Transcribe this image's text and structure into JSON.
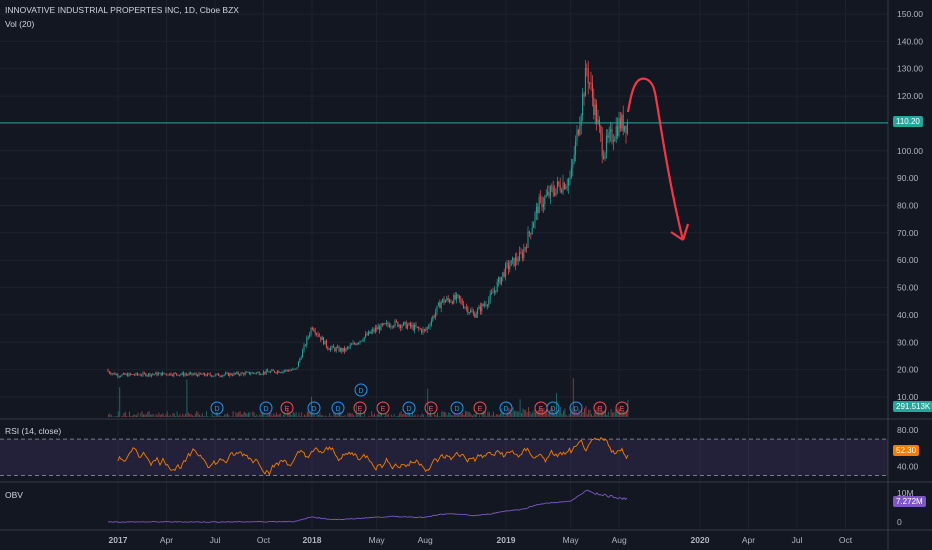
{
  "header": {
    "symbol_title": "INNOVATIVE INDUSTRIAL PROPERTES INC, 1D, Cboe BZX",
    "volume_label": "Vol (20)"
  },
  "panes": {
    "rsi_label": "RSI (14, close)",
    "obv_label": "OBV"
  },
  "badges": {
    "last_price": "110.20",
    "volume": "291.513K",
    "rsi": "52.30",
    "obv": "7.272M"
  },
  "colors": {
    "background": "#131722",
    "up": "#26a69a",
    "down": "#ef5350",
    "price_line": "#26a69a",
    "rsi_line": "#f57c00",
    "rsi_band": "#7e57c2",
    "obv_line": "#7e57c2",
    "drawing": "#f23645"
  },
  "chart_data": [
    {
      "type": "line",
      "title": "INNOVATIVE INDUSTRIAL PROPERTES INC, 1D, Cboe BZX",
      "x_ticks": [
        "2017",
        "Apr",
        "Jul",
        "Oct",
        "2018",
        "May",
        "Aug",
        "2019",
        "May",
        "Aug",
        "2020",
        "Apr",
        "Jul",
        "Oct"
      ],
      "y_ticks": [
        "150.00",
        "140.00",
        "130.00",
        "120.00",
        "110.00",
        "100.00",
        "90.00",
        "80.00",
        "70.00",
        "60.00",
        "50.00",
        "40.00",
        "30.00",
        "20.00",
        "10.00"
      ],
      "ylim": [
        10,
        150
      ],
      "series": [
        {
          "x": [
            "2016-12",
            "2017-01",
            "2017-04",
            "2017-07",
            "2017-10",
            "2017-12",
            "2018-01",
            "2018-02",
            "2018-03",
            "2018-04",
            "2018-05",
            "2018-06",
            "2018-07",
            "2018-08",
            "2018-09",
            "2018-10",
            "2018-11",
            "2018-12",
            "2019-01",
            "2019-02",
            "2019-03",
            "2019-04",
            "2019-05",
            "2019-06",
            "2019-07",
            "2019-08"
          ],
          "values": [
            20,
            18,
            18.5,
            18,
            19,
            20,
            36,
            28,
            27,
            31,
            35,
            37,
            36,
            34,
            45,
            46,
            40,
            46,
            57,
            62,
            80,
            86,
            90,
            130,
            100,
            110
          ]
        }
      ],
      "last_price": 110.2
    },
    {
      "type": "area",
      "title": "Vol (20)",
      "last_value": "291.513K"
    },
    {
      "type": "line",
      "title": "RSI (14, close)",
      "y_ticks": [
        "80.00",
        "40.00"
      ],
      "band": [
        30,
        70
      ],
      "last_value": 52.3
    },
    {
      "type": "line",
      "title": "OBV",
      "y_ticks": [
        "10M",
        "0"
      ],
      "last_value": "7.272M"
    }
  ],
  "event_markers": [
    "D",
    "D",
    "E",
    "D",
    "D",
    "E",
    "E",
    "D",
    "E",
    "D",
    "E",
    "D",
    "E",
    "D",
    "D",
    "E",
    "E",
    "D",
    "E"
  ]
}
